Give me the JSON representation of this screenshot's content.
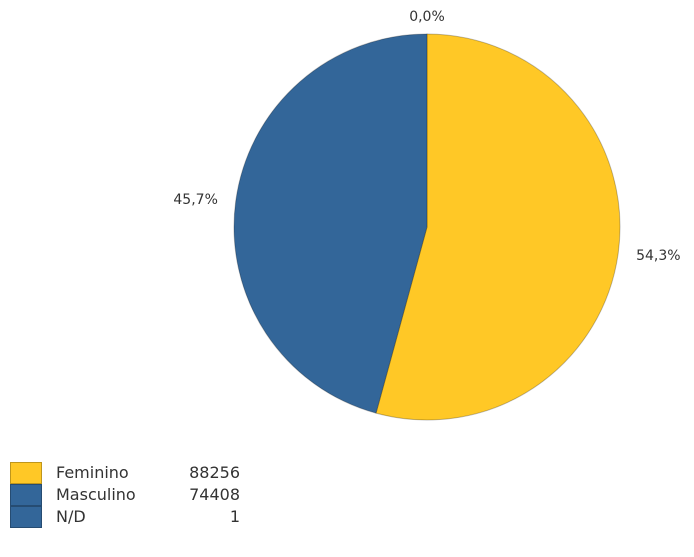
{
  "chart_data": {
    "type": "pie",
    "slices": [
      {
        "label": "Feminino",
        "value": 88256,
        "color": "#FFC826",
        "percent_label": "54,3%"
      },
      {
        "label": "Masculino",
        "value": 74408,
        "color": "#336699",
        "percent_label": "45,7%"
      },
      {
        "label": "N/D",
        "value": 1,
        "color": "#336699",
        "percent_label": "0,0%"
      }
    ],
    "legend_position": "bottom-left"
  }
}
